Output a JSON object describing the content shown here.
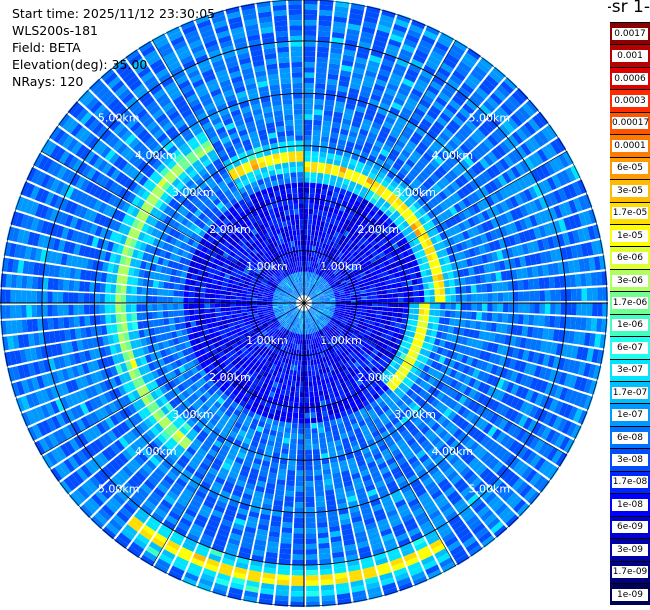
{
  "info": {
    "start_time": "Start time: 2025/11/12 23:30:05",
    "device": "WLS200s-181",
    "field": "Field: BETA",
    "elevation": "Elevation(deg): 35.00",
    "nrays": "NRays: 120"
  },
  "colorbar": {
    "unit_label": "-1 sr-",
    "labels": [
      "0.0017",
      "0.001",
      "0.0006",
      "0.0003",
      "0.00017",
      "0.0001",
      "6e-05",
      "3e-05",
      "1.7e-05",
      "1e-05",
      "6e-06",
      "3e-06",
      "1.7e-06",
      "1e-06",
      "6e-07",
      "3e-07",
      "1.7e-07",
      "1e-07",
      "6e-08",
      "3e-08",
      "1.7e-08",
      "1e-08",
      "6e-09",
      "3e-09",
      "1.7e-09",
      "1e-09"
    ],
    "colors": [
      "#8b0000",
      "#b80000",
      "#e00000",
      "#ff2a00",
      "#ff5500",
      "#ff7a00",
      "#ff9a00",
      "#ffbb00",
      "#ffdd00",
      "#ffff00",
      "#e0ff30",
      "#b0ff60",
      "#70ff90",
      "#40ffc0",
      "#20ffee",
      "#00e5ff",
      "#00bfff",
      "#0099ff",
      "#0073ff",
      "#004dff",
      "#0026ff",
      "#0000ff",
      "#0000d4",
      "#0000aa",
      "#000080",
      "#000055"
    ]
  },
  "chart_data": {
    "type": "heatmap",
    "projection": "polar",
    "rays": 120,
    "elevation_deg": 35.0,
    "range_ring_labels": [
      "1.00km",
      "2.00km",
      "3.00km",
      "4.00km",
      "5.00km"
    ],
    "range_rings_km": [
      1,
      2,
      3,
      4,
      5
    ],
    "max_range_km": 5.8,
    "background_level": "6e-08",
    "inner_hole_km": 0.15,
    "bright_band": [
      {
        "azimuth_from_deg": 0,
        "azimuth_to_deg": 90,
        "range_km": 2.6,
        "level": "1.7e-05"
      },
      {
        "azimuth_from_deg": 90,
        "azimuth_to_deg": 135,
        "range_km": 2.3,
        "level": "1e-05"
      },
      {
        "azimuth_from_deg": 150,
        "azimuth_to_deg": 220,
        "range_km": 5.3,
        "level": "1.7e-05"
      },
      {
        "azimuth_from_deg": 220,
        "azimuth_to_deg": 330,
        "range_km": 3.5,
        "level": "3e-06"
      },
      {
        "azimuth_from_deg": 330,
        "azimuth_to_deg": 360,
        "range_km": 2.8,
        "level": "1.7e-05"
      }
    ],
    "grid": true
  }
}
